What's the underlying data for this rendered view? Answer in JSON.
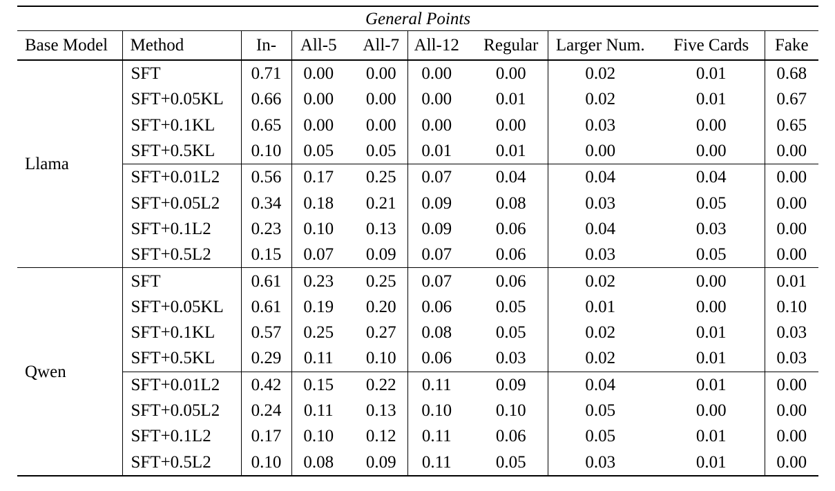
{
  "table": {
    "title": "General Points",
    "columns": [
      "Base Model",
      "Method",
      "In-",
      "All-5",
      "All-7",
      "All-12",
      "Regular",
      "Larger Num.",
      "Five Cards",
      "Fake"
    ],
    "groups": [
      {
        "base_model": "Llama",
        "rows": [
          {
            "method": "SFT",
            "divider_above": false,
            "values": [
              "0.71",
              "0.00",
              "0.00",
              "0.00",
              "0.00",
              "0.02",
              "0.01",
              "0.68"
            ]
          },
          {
            "method": "SFT+0.05KL",
            "divider_above": false,
            "values": [
              "0.66",
              "0.00",
              "0.00",
              "0.00",
              "0.01",
              "0.02",
              "0.01",
              "0.67"
            ]
          },
          {
            "method": "SFT+0.1KL",
            "divider_above": false,
            "values": [
              "0.65",
              "0.00",
              "0.00",
              "0.00",
              "0.00",
              "0.03",
              "0.00",
              "0.65"
            ]
          },
          {
            "method": "SFT+0.5KL",
            "divider_above": false,
            "values": [
              "0.10",
              "0.05",
              "0.05",
              "0.01",
              "0.01",
              "0.00",
              "0.00",
              "0.00"
            ]
          },
          {
            "method": "SFT+0.01L2",
            "divider_above": true,
            "values": [
              "0.56",
              "0.17",
              "0.25",
              "0.07",
              "0.04",
              "0.04",
              "0.04",
              "0.00"
            ]
          },
          {
            "method": "SFT+0.05L2",
            "divider_above": false,
            "values": [
              "0.34",
              "0.18",
              "0.21",
              "0.09",
              "0.08",
              "0.03",
              "0.05",
              "0.00"
            ]
          },
          {
            "method": "SFT+0.1L2",
            "divider_above": false,
            "values": [
              "0.23",
              "0.10",
              "0.13",
              "0.09",
              "0.06",
              "0.04",
              "0.03",
              "0.00"
            ]
          },
          {
            "method": "SFT+0.5L2",
            "divider_above": false,
            "values": [
              "0.15",
              "0.07",
              "0.09",
              "0.07",
              "0.06",
              "0.03",
              "0.05",
              "0.00"
            ]
          }
        ]
      },
      {
        "base_model": "Qwen",
        "rows": [
          {
            "method": "SFT",
            "divider_above": false,
            "values": [
              "0.61",
              "0.23",
              "0.25",
              "0.07",
              "0.06",
              "0.02",
              "0.00",
              "0.01"
            ]
          },
          {
            "method": "SFT+0.05KL",
            "divider_above": false,
            "values": [
              "0.61",
              "0.19",
              "0.20",
              "0.06",
              "0.05",
              "0.01",
              "0.00",
              "0.10"
            ]
          },
          {
            "method": "SFT+0.1KL",
            "divider_above": false,
            "values": [
              "0.57",
              "0.25",
              "0.27",
              "0.08",
              "0.05",
              "0.02",
              "0.01",
              "0.03"
            ]
          },
          {
            "method": "SFT+0.5KL",
            "divider_above": false,
            "values": [
              "0.29",
              "0.11",
              "0.10",
              "0.06",
              "0.03",
              "0.02",
              "0.01",
              "0.03"
            ]
          },
          {
            "method": "SFT+0.01L2",
            "divider_above": true,
            "values": [
              "0.42",
              "0.15",
              "0.22",
              "0.11",
              "0.09",
              "0.04",
              "0.01",
              "0.00"
            ]
          },
          {
            "method": "SFT+0.05L2",
            "divider_above": false,
            "values": [
              "0.24",
              "0.11",
              "0.13",
              "0.10",
              "0.10",
              "0.05",
              "0.00",
              "0.00"
            ]
          },
          {
            "method": "SFT+0.1L2",
            "divider_above": false,
            "values": [
              "0.17",
              "0.10",
              "0.12",
              "0.11",
              "0.06",
              "0.05",
              "0.01",
              "0.00"
            ]
          },
          {
            "method": "SFT+0.5L2",
            "divider_above": false,
            "values": [
              "0.10",
              "0.08",
              "0.09",
              "0.11",
              "0.05",
              "0.03",
              "0.01",
              "0.00"
            ]
          }
        ]
      }
    ]
  }
}
